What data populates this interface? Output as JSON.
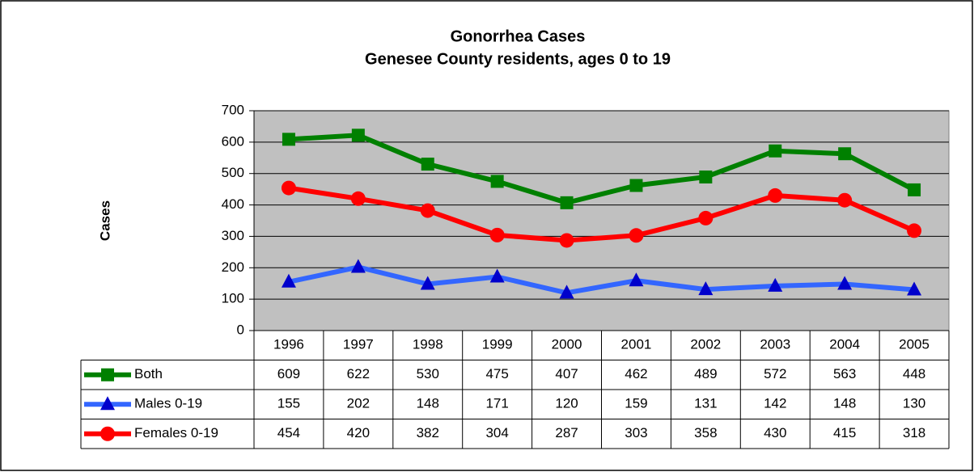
{
  "chart_data": {
    "type": "line",
    "title": "Gonorrhea Cases",
    "subtitle": "Genesee County residents, ages 0 to 19",
    "y_label": "Cases",
    "categories": [
      "1996",
      "1997",
      "1998",
      "1999",
      "2000",
      "2001",
      "2002",
      "2003",
      "2004",
      "2005"
    ],
    "series": [
      {
        "name": "Both",
        "color": "#008000",
        "marker": "square",
        "values": [
          609,
          622,
          530,
          475,
          407,
          462,
          489,
          572,
          563,
          448
        ]
      },
      {
        "name": "Males 0-19",
        "color": "#3366ff",
        "marker": "triangle",
        "values": [
          155,
          202,
          148,
          171,
          120,
          159,
          131,
          142,
          148,
          130
        ]
      },
      {
        "name": "Females 0-19",
        "color": "#ff0000",
        "marker": "circle",
        "values": [
          454,
          420,
          382,
          304,
          287,
          303,
          358,
          430,
          415,
          318
        ]
      }
    ],
    "ylim": [
      0,
      700
    ],
    "yticks": [
      0,
      100,
      200,
      300,
      400,
      500,
      600,
      700
    ],
    "grid": true,
    "plot_background": "#c0c0c0"
  }
}
